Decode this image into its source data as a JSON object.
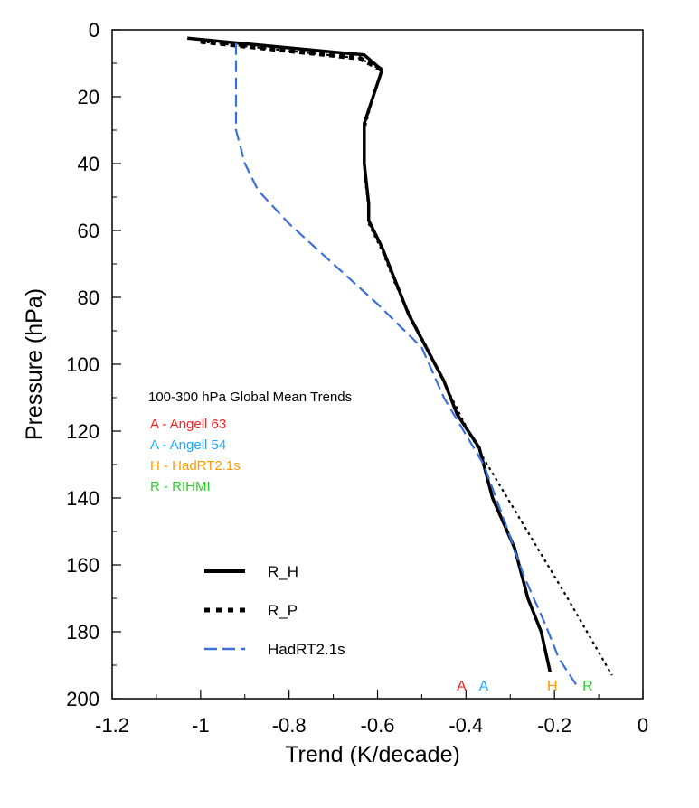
{
  "chart_data": {
    "type": "line",
    "xlabel": "Trend (K/decade)",
    "ylabel": "Pressure (hPa)",
    "xlim": [
      -1.2,
      0
    ],
    "ylim": [
      200,
      0
    ],
    "y_inverted": true,
    "xticks": [
      -1.2,
      -1,
      -0.8,
      -0.6,
      -0.4,
      -0.2,
      0
    ],
    "xtick_labels": [
      "-1.2",
      "-1",
      "-0.8",
      "-0.6",
      "-0.4",
      "-0.2",
      "0"
    ],
    "yticks": [
      0,
      20,
      40,
      60,
      80,
      100,
      120,
      140,
      160,
      180,
      200
    ],
    "ytick_labels": [
      "0",
      "20",
      "40",
      "60",
      "80",
      "100",
      "120",
      "140",
      "160",
      "180",
      "200"
    ],
    "grid": false,
    "series": [
      {
        "name": "R_H",
        "style": "solid",
        "color": "#000000",
        "points": [
          [
            -1.03,
            2.5
          ],
          [
            -0.63,
            7.5
          ],
          [
            -0.59,
            12
          ],
          [
            -0.61,
            20
          ],
          [
            -0.63,
            28
          ],
          [
            -0.63,
            40
          ],
          [
            -0.62,
            52
          ],
          [
            -0.62,
            57
          ],
          [
            -0.59,
            65
          ],
          [
            -0.56,
            75
          ],
          [
            -0.53,
            85
          ],
          [
            -0.49,
            95
          ],
          [
            -0.45,
            105
          ],
          [
            -0.42,
            115
          ],
          [
            -0.37,
            125
          ],
          [
            -0.34,
            140
          ],
          [
            -0.29,
            155
          ],
          [
            -0.26,
            170
          ],
          [
            -0.23,
            180
          ],
          [
            -0.21,
            192
          ]
        ]
      },
      {
        "name": "R_P",
        "style": "dotted",
        "color": "#000000",
        "points": [
          [
            -1.0,
            3.5
          ],
          [
            -0.64,
            8.5
          ],
          [
            -0.59,
            12
          ],
          [
            -0.61,
            20
          ],
          [
            -0.63,
            30
          ],
          [
            -0.63,
            42
          ],
          [
            -0.62,
            54
          ],
          [
            -0.62,
            58
          ],
          [
            -0.59,
            66
          ],
          [
            -0.56,
            76
          ],
          [
            -0.52,
            87
          ],
          [
            -0.48,
            97
          ],
          [
            -0.44,
            108
          ],
          [
            -0.41,
            116
          ],
          [
            -0.37,
            126
          ],
          [
            -0.27,
            148
          ],
          [
            -0.17,
            170
          ],
          [
            -0.07,
            193
          ]
        ]
      },
      {
        "name": "HadRT2.1s",
        "style": "dashed",
        "color": "#3b6fdc",
        "points": [
          [
            -0.92,
            4
          ],
          [
            -0.92,
            15
          ],
          [
            -0.92,
            30
          ],
          [
            -0.9,
            40
          ],
          [
            -0.87,
            48
          ],
          [
            -0.8,
            58
          ],
          [
            -0.7,
            70
          ],
          [
            -0.6,
            82
          ],
          [
            -0.5,
            95
          ],
          [
            -0.45,
            110
          ],
          [
            -0.36,
            130
          ],
          [
            -0.31,
            148
          ],
          [
            -0.27,
            163
          ],
          [
            -0.22,
            178
          ],
          [
            -0.19,
            188
          ],
          [
            -0.15,
            196
          ]
        ]
      }
    ],
    "legend": {
      "placement": "lower-left",
      "entries": [
        "R_H",
        "R_P",
        "HadRT2.1s"
      ]
    },
    "annotation": {
      "title": "100-300 hPa Global Mean Trends",
      "items": [
        {
          "text": "A  -  Angell 63",
          "color": "#ff2020"
        },
        {
          "text": "A  -  Angell 54",
          "color": "#1ea7ff"
        },
        {
          "text": "H  -  HadRT2.1s",
          "color": "#ff9a00"
        },
        {
          "text": "R  -  RIHMI",
          "color": "#2ecc2e"
        }
      ]
    },
    "markers": [
      {
        "letter": "A",
        "x": -0.41,
        "color": "#ff2020"
      },
      {
        "letter": "A",
        "x": -0.36,
        "color": "#1ea7ff"
      },
      {
        "letter": "H",
        "x": -0.205,
        "color": "#ff9a00"
      },
      {
        "letter": "R",
        "x": -0.125,
        "color": "#2ecc2e"
      }
    ]
  }
}
